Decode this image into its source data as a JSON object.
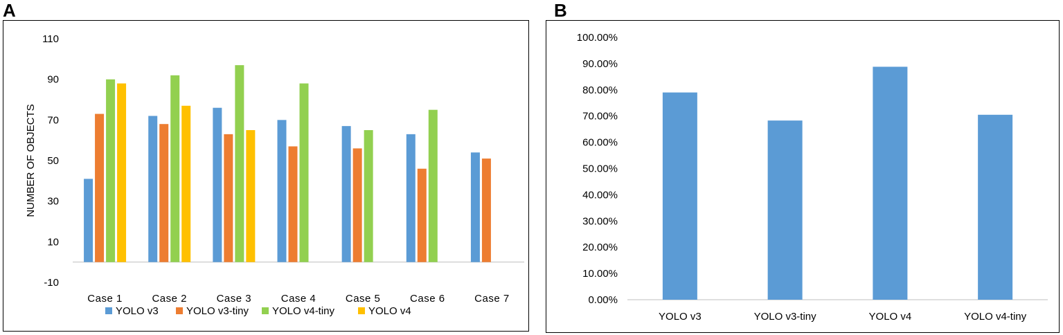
{
  "panels": {
    "a_label": "A",
    "b_label": "B"
  },
  "colors": {
    "yolo_v3": "#5b9bd5",
    "yolo_v3_tiny": "#ed7d31",
    "yolo_v4_tiny": "#92d050",
    "yolo_v4": "#ffc000",
    "bar_b": "#5b9bd5",
    "axis": "#bfbfbf",
    "text": "#000000"
  },
  "chart_data": [
    {
      "id": "A",
      "type": "bar",
      "title": "",
      "xlabel": "",
      "ylabel": "NUMBER OF OBJECTS",
      "ylim": [
        -10,
        110
      ],
      "yticks": [
        -10,
        10,
        30,
        50,
        70,
        90,
        110
      ],
      "grid": false,
      "legend": "bottom",
      "categories": [
        "Case 1",
        "Case 2",
        "Case 3",
        "Case 4",
        "Case 5",
        "Case 6",
        "Case 7"
      ],
      "series": [
        {
          "name": "YOLO v3",
          "color": "#5b9bd5",
          "values": [
            41,
            72,
            76,
            70,
            67,
            63,
            54
          ]
        },
        {
          "name": "YOLO v3-tiny",
          "color": "#ed7d31",
          "values": [
            73,
            68,
            63,
            57,
            56,
            46,
            51
          ]
        },
        {
          "name": "YOLO v4-tiny",
          "color": "#92d050",
          "values": [
            90,
            92,
            97,
            88,
            65,
            75,
            null
          ]
        },
        {
          "name": "YOLO v4",
          "color": "#ffc000",
          "values": [
            88,
            77,
            65,
            null,
            null,
            null,
            null
          ]
        }
      ]
    },
    {
      "id": "B",
      "type": "bar",
      "title": "",
      "xlabel": "",
      "ylabel": "",
      "ylim": [
        0,
        100
      ],
      "yticks": [
        "0.00%",
        "10.00%",
        "20.00%",
        "30.00%",
        "40.00%",
        "50.00%",
        "60.00%",
        "70.00%",
        "80.00%",
        "90.00%",
        "100.00%"
      ],
      "grid": false,
      "categories": [
        "YOLO v3",
        "YOLO v3-tiny",
        "YOLO v4",
        "YOLO v4-tiny"
      ],
      "values": [
        79,
        68.3,
        88.8,
        70.5
      ]
    }
  ]
}
